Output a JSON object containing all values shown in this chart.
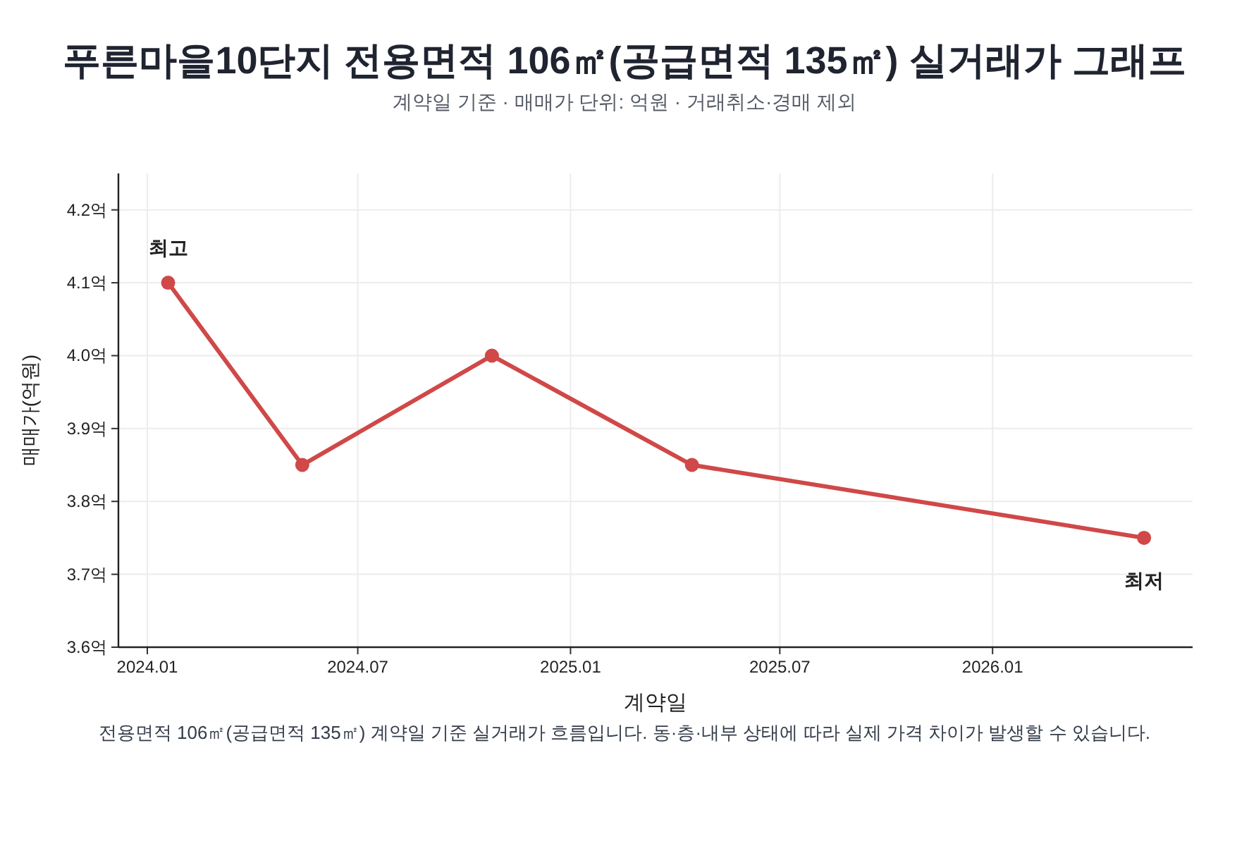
{
  "chart_data": {
    "type": "line",
    "title": "푸른마을10단지 전용면적 106㎡(공급면적 135㎡) 실거래가 그래프",
    "subtitle": "계약일 기준 · 매매가 단위: 억원 · 거래취소·경매 제외",
    "xlabel": "계약일",
    "ylabel": "매매가(억원)",
    "x": [
      "2024-01-19",
      "2024-05-14",
      "2024-10-25",
      "2025-04-16",
      "2026-05-12"
    ],
    "series": [
      {
        "color": "#d04848",
        "values": [
          4.1,
          3.85,
          4.0,
          3.85,
          3.75
        ]
      }
    ],
    "xlim": [
      "2023-12-07",
      "2026-06-23"
    ],
    "xticks": [
      {
        "value": "2024-01",
        "label": "2024.01"
      },
      {
        "value": "2024-07",
        "label": "2024.07"
      },
      {
        "value": "2025-01",
        "label": "2025.01"
      },
      {
        "value": "2025-07",
        "label": "2025.07"
      },
      {
        "value": "2026-01",
        "label": "2026.01"
      }
    ],
    "ylim": [
      3.6,
      4.25
    ],
    "yticks": [
      {
        "value": 3.6,
        "label": "3.6억"
      },
      {
        "value": 3.7,
        "label": "3.7억"
      },
      {
        "value": 3.8,
        "label": "3.8억"
      },
      {
        "value": 3.9,
        "label": "3.9억"
      },
      {
        "value": 4.0,
        "label": "4.0억"
      },
      {
        "value": 4.1,
        "label": "4.1억"
      },
      {
        "value": 4.2,
        "label": "4.2억"
      }
    ],
    "grid": true,
    "marker": "circle",
    "line_style": "solid",
    "annotations": [
      {
        "text": "최고",
        "x": "2024-01-19",
        "y": 4.1
      },
      {
        "text": "최저",
        "x": "2026-05-12",
        "y": 3.75
      },
      "전용면적 106㎡(공급면적 135㎡) 계약일 기준 실거래가 흐름입니다. 동·층·내부 상태에 따라 실제 가격 차이가 발생할 수 있습니다."
    ]
  }
}
